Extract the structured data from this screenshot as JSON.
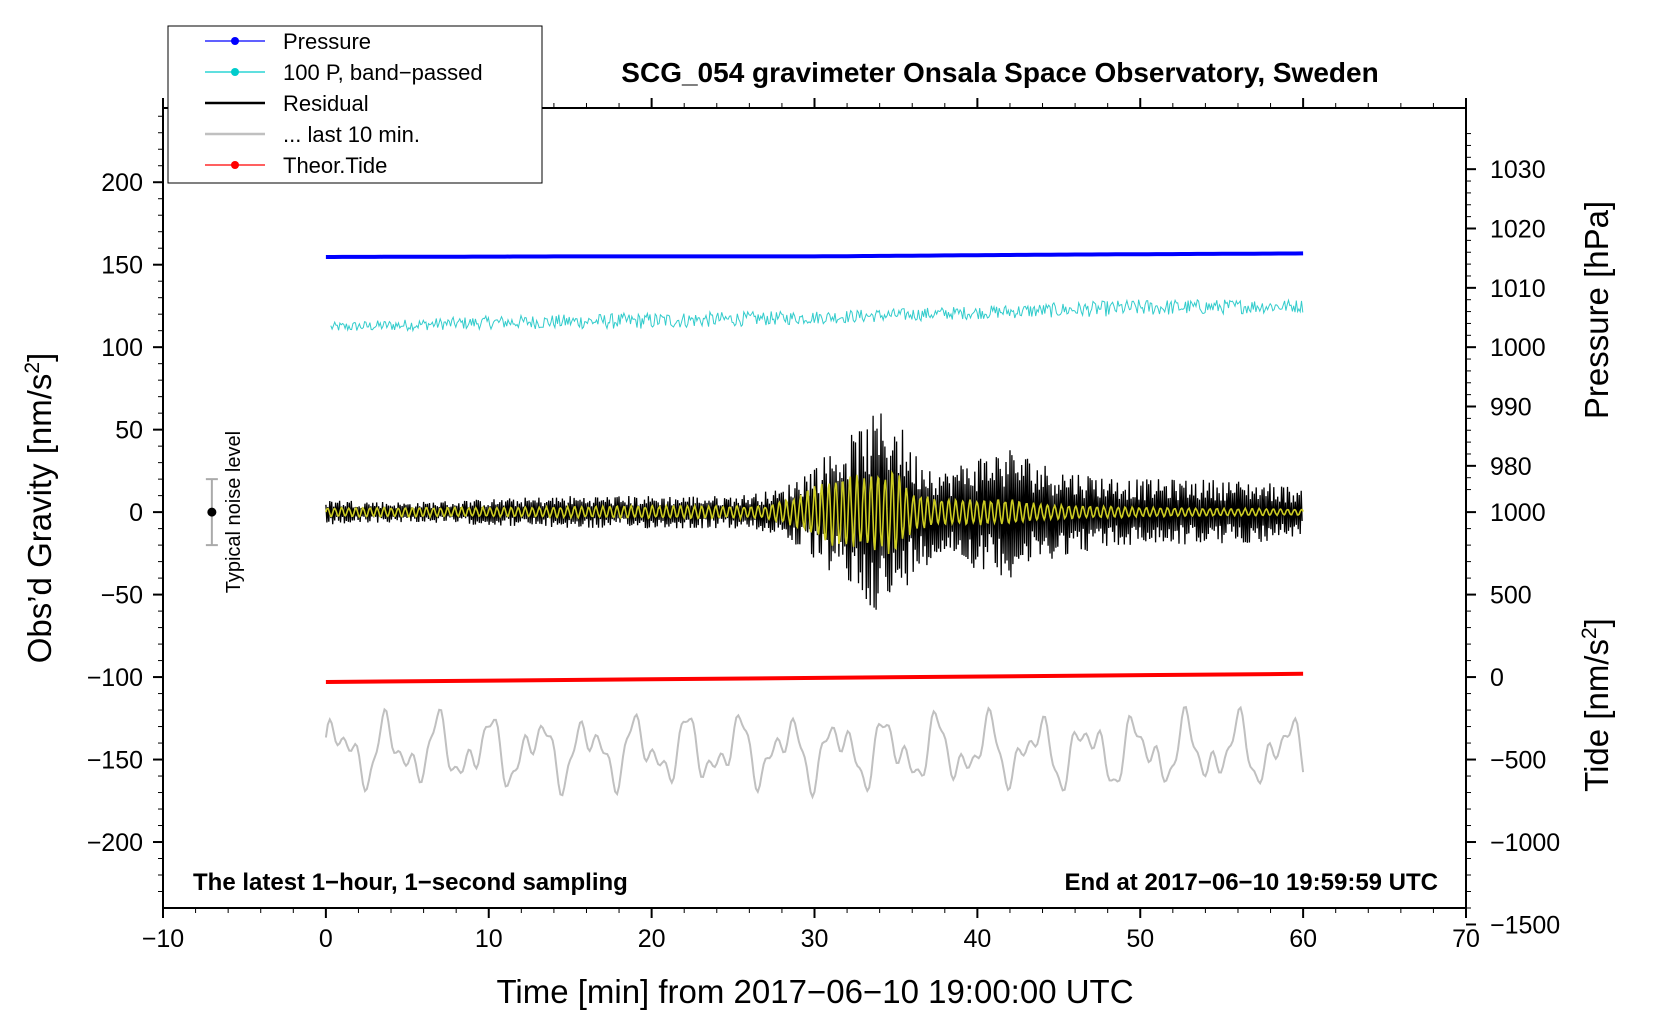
{
  "chart_data": {
    "type": "line",
    "title": "SCG_054 gravimeter Onsala Space Observatory, Sweden",
    "xlabel": "Time [min] from 2017−06−10 19:00:00 UTC",
    "ylabel": "Obs’d Gravity [nm/s²]",
    "ylabel_main": "Obs’d Gravity [nm/s",
    "ylabel_sup": "2",
    "ylabel_end": "]",
    "y2label": "Pressure [hPa]",
    "y3label_main": "Tide [nm/s",
    "y3label_sup": "2",
    "y3label_end": "]",
    "xlim": [
      -10,
      70
    ],
    "ylim": [
      -240,
      245
    ],
    "xticks": [
      -10,
      0,
      10,
      20,
      30,
      40,
      50,
      60,
      70
    ],
    "xtick_labels": [
      "−10",
      "0",
      "10",
      "20",
      "30",
      "40",
      "50",
      "60",
      "70"
    ],
    "yticks": [
      200,
      150,
      100,
      50,
      0,
      -50,
      -100,
      -150,
      -200
    ],
    "ytick_labels": [
      "200",
      "150",
      "100",
      "50",
      "0",
      "−50",
      "−100",
      "−150",
      "−200"
    ],
    "pressure_axis": {
      "ticks": [
        1030,
        1020,
        1010,
        1000,
        990,
        980
      ],
      "tick_labels": [
        "1030",
        "1020",
        "1010",
        "1000",
        "990",
        "980"
      ],
      "value_at_gravity_200": 1027.8,
      "value_at_gravity_100": 1000.0
    },
    "tide_axis": {
      "ticks": [
        1000,
        500,
        0,
        -500,
        -1000,
        -1500
      ],
      "tick_labels": [
        "1000",
        "500",
        "0",
        "−500",
        "−1000",
        "−1500"
      ],
      "value_at_gravity_0": 1000,
      "value_at_gravity_min200": -1000
    },
    "legend": [
      {
        "label": "Pressure",
        "color": "#0000ff",
        "marker": true
      },
      {
        "label": "100 P, band−passed",
        "color": "#00cccc",
        "marker": true
      },
      {
        "label": "Residual",
        "color": "#000000",
        "marker": false
      },
      {
        "label": "... last 10 min.",
        "color": "#c0c0c0",
        "marker": false
      },
      {
        "label": "Theor.Tide",
        "color": "#ff0000",
        "marker": true
      }
    ],
    "series": [
      {
        "name": "Pressure",
        "axis": "pressure",
        "color": "#0000ff",
        "x": [
          0,
          15,
          30,
          45,
          60
        ],
        "values": [
          1015.2,
          1015.3,
          1015.3,
          1015.6,
          1015.8
        ]
      },
      {
        "name": "100 P, band−passed",
        "axis": "gravity",
        "color": "#33cccc",
        "x": [
          0,
          10,
          20,
          30,
          40,
          50,
          60
        ],
        "values": [
          112,
          115,
          116,
          118,
          121,
          124,
          125
        ],
        "noise_amplitude": [
          3,
          4,
          5,
          4,
          4,
          5,
          4
        ]
      },
      {
        "name": "Residual",
        "axis": "gravity",
        "color": "#000000",
        "x": [
          0,
          5,
          10,
          15,
          20,
          25,
          28,
          30,
          32,
          34,
          35,
          36,
          38,
          40,
          42,
          44,
          46,
          48,
          50,
          52,
          55,
          58,
          60
        ],
        "envelope": [
          8,
          6,
          8,
          10,
          10,
          10,
          14,
          30,
          45,
          62,
          60,
          38,
          25,
          35,
          40,
          30,
          25,
          22,
          20,
          20,
          20,
          18,
          14
        ]
      },
      {
        "name": "Residual (band-passed)",
        "axis": "gravity",
        "color": "#cccc22",
        "x": [
          0,
          10,
          20,
          27,
          29,
          31,
          33,
          35,
          36,
          38,
          40,
          42,
          44,
          50,
          60
        ],
        "envelope": [
          3,
          3,
          4,
          4,
          10,
          22,
          24,
          26,
          12,
          8,
          8,
          8,
          5,
          3,
          2
        ]
      },
      {
        "name": "... last 10 min.",
        "axis": "gravity",
        "color": "#c0c0c0",
        "x": [
          0,
          60
        ],
        "center": -145,
        "amplitude": 20
      },
      {
        "name": "Theor.Tide",
        "axis": "tide",
        "color": "#ff0000",
        "x": [
          0,
          60
        ],
        "values": [
          -30,
          20
        ]
      }
    ],
    "noise_marker": {
      "label": "Typical noise level",
      "x": -7,
      "value": 0,
      "error": 20
    },
    "bottom_left_note": "The latest 1−hour, 1−second sampling",
    "bottom_right_note": "End at 2017−06−10 19:59:59 UTC"
  }
}
